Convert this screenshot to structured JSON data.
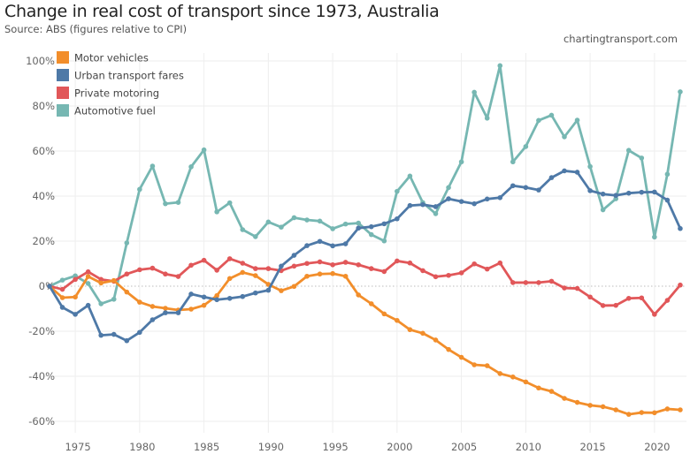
{
  "header": {
    "title": "Change in real cost of transport since 1973, Australia",
    "subtitle": "Source: ABS (figures relative to CPI)",
    "credit": "chartingtransport.com"
  },
  "chart_data": {
    "type": "line",
    "title": "Change in real cost of transport since 1973, Australia",
    "xlabel": "",
    "ylabel": "",
    "xlim": [
      1973,
      2022
    ],
    "ylim": [
      -60,
      100
    ],
    "x_ticks": [
      "1975",
      "1980",
      "1985",
      "1990",
      "1995",
      "2000",
      "2005",
      "2010",
      "2015",
      "2020"
    ],
    "y_ticks": [
      "100%",
      "80%",
      "60%",
      "40%",
      "20%",
      "0%",
      "-20%",
      "-40%",
      "-60%"
    ],
    "grid": true,
    "legend_position": "top-left",
    "x": [
      1973,
      1974,
      1975,
      1976,
      1977,
      1978,
      1979,
      1980,
      1981,
      1982,
      1983,
      1984,
      1985,
      1986,
      1987,
      1988,
      1989,
      1990,
      1991,
      1992,
      1993,
      1994,
      1995,
      1996,
      1997,
      1998,
      1999,
      2000,
      2001,
      2002,
      2003,
      2004,
      2005,
      2006,
      2007,
      2008,
      2009,
      2010,
      2011,
      2012,
      2013,
      2014,
      2015,
      2016,
      2017,
      2018,
      2019,
      2020,
      2021,
      2022
    ],
    "series": [
      {
        "name": "Motor vehicles",
        "color": "#f28e2b",
        "values": [
          0,
          -5.1,
          -4.8,
          4.3,
          1.4,
          2.5,
          -2.6,
          -7.1,
          -9,
          -9.8,
          -10.6,
          -10.2,
          -8.5,
          -4.2,
          3.4,
          6.1,
          4.7,
          0.8,
          -2,
          -0.1,
          4.4,
          5.4,
          5.6,
          4.4,
          -3.9,
          -7.8,
          -12.3,
          -15.2,
          -19.3,
          -20.9,
          -23.9,
          -28.1,
          -31.6,
          -34.9,
          -35.3,
          -38.8,
          -40.3,
          -42.5,
          -45.2,
          -46.7,
          -49.8,
          -51.6,
          -52.9,
          -53.5,
          -54.9,
          -56.9,
          -56.1,
          -56.2,
          -54.5,
          -54.9
        ]
      },
      {
        "name": "Urban transport fares",
        "color": "#4e79a7",
        "values": [
          0,
          -9.4,
          -12.5,
          -8.5,
          -21.8,
          -21.4,
          -24.2,
          -20.5,
          -14.9,
          -11.8,
          -11.8,
          -3.5,
          -4.8,
          -6,
          -5.4,
          -4.6,
          -3,
          -1.8,
          8.9,
          13.7,
          18,
          19.9,
          17.9,
          18.8,
          25.8,
          26.4,
          27.7,
          29.9,
          35.8,
          36.2,
          35.3,
          38.8,
          37.6,
          36.6,
          38.7,
          39.3,
          44.6,
          43.8,
          42.7,
          48.2,
          51.2,
          50.6,
          42.4,
          40.9,
          40.3,
          41.3,
          41.7,
          41.8,
          38.2,
          25.6
        ]
      },
      {
        "name": "Private motoring",
        "color": "#e15759",
        "values": [
          0,
          -1.4,
          3,
          6.4,
          3,
          2.2,
          5.4,
          7.3,
          8,
          5.4,
          4.3,
          9.3,
          11.5,
          7.1,
          12.2,
          10.2,
          7.8,
          7.8,
          6.9,
          8.9,
          10.1,
          10.8,
          9.5,
          10.6,
          9.5,
          7.8,
          6.5,
          11.2,
          10.3,
          6.9,
          4.2,
          4.8,
          5.9,
          9.9,
          7.6,
          10.3,
          1.6,
          1.6,
          1.6,
          2.2,
          -0.8,
          -1,
          -4.8,
          -8.6,
          -8.5,
          -5.4,
          -5.2,
          -12.5,
          -6.3,
          0.5
        ]
      },
      {
        "name": "Automotive fuel",
        "color": "#76b7b2",
        "values": [
          0,
          2.7,
          4.6,
          1.2,
          -7.8,
          -5.8,
          19.2,
          43,
          53.3,
          36.6,
          37.2,
          53,
          60.5,
          33,
          37,
          25.1,
          22,
          28.5,
          26.2,
          30.4,
          29.4,
          28.9,
          25.5,
          27.6,
          28,
          22.9,
          20.1,
          42.1,
          48.9,
          37.1,
          32.2,
          43.8,
          55.2,
          86.1,
          74.6,
          97.9,
          55.2,
          62,
          73.6,
          75.9,
          66.3,
          73.7,
          53.1,
          33.9,
          38.8,
          60.3,
          56.9,
          21.8,
          49.7,
          86.3
        ]
      }
    ]
  }
}
